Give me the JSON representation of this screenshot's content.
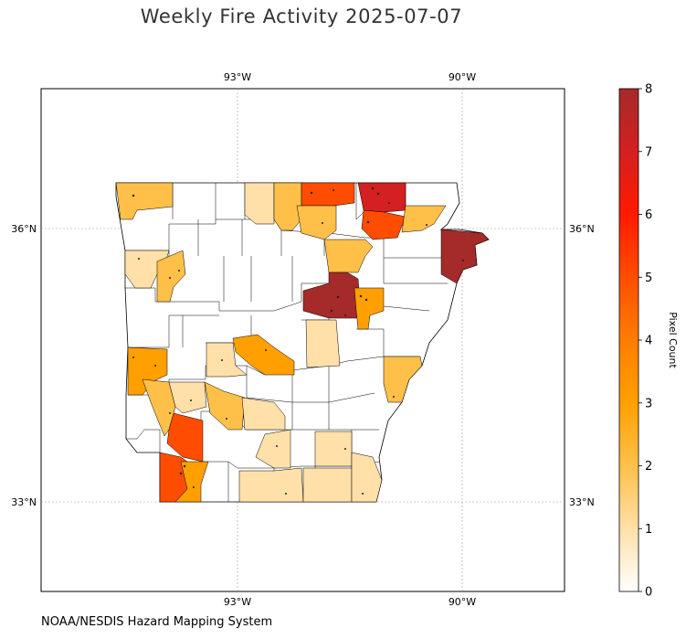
{
  "title": "Weekly Fire Activity 2025-07-07",
  "credit": "NOAA/NESDIS Hazard Mapping System",
  "axes": {
    "lon_ticks": [
      "93°W",
      "90°W"
    ],
    "lat_ticks": [
      "36°N",
      "33°N"
    ]
  },
  "colorbar": {
    "label": "Pixel Count",
    "ticks": [
      "0",
      "1",
      "2",
      "3",
      "4",
      "5",
      "6",
      "7",
      "8"
    ],
    "range": [
      0,
      8
    ],
    "colors": [
      "#ffffff",
      "#ffe0a8",
      "#ffc04a",
      "#ffa000",
      "#ff7d00",
      "#ff4d00",
      "#ff1a00",
      "#d42020",
      "#a52a2a"
    ]
  },
  "legend": {
    "color_scale": "white to orange to red to dark red"
  },
  "region": "Arkansas counties"
}
